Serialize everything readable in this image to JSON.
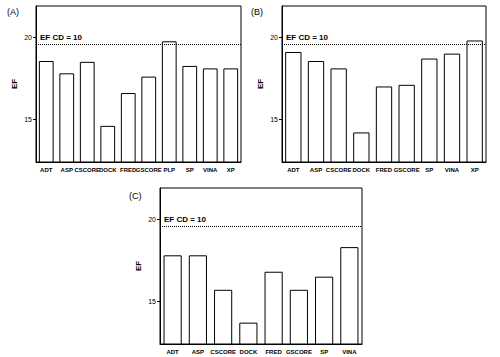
{
  "chart_data": [
    {
      "type": "bar",
      "title": "(A)",
      "ylabel": "EF",
      "categories": [
        "ADT",
        "ASP",
        "CSCORE",
        "DOCK",
        "FRED",
        "GSCORE",
        "PLP",
        "SP",
        "VINA",
        "XP"
      ],
      "values": [
        18.55,
        17.8,
        18.5,
        14.6,
        16.6,
        17.6,
        19.75,
        18.25,
        18.1,
        18.1
      ],
      "color": "#ffffff",
      "ylim": [
        12.4,
        21.9
      ],
      "yticks": [
        15,
        20
      ],
      "grid": false,
      "reference_line": {
        "value": 19.6,
        "label": "EF CD = 10"
      }
    },
    {
      "type": "bar",
      "title": "(B)",
      "ylabel": "EF",
      "categories": [
        "ADT",
        "ASP",
        "CSCORE",
        "DOCK",
        "FRED",
        "GSCORE",
        "SP",
        "VINA",
        "XP"
      ],
      "values": [
        19.1,
        18.55,
        18.1,
        14.2,
        17.0,
        17.1,
        18.7,
        19.0,
        19.8
      ],
      "color": "#ffffff",
      "ylim": [
        12.4,
        21.9
      ],
      "yticks": [
        15,
        20
      ],
      "grid": false,
      "reference_line": {
        "value": 19.6,
        "label": "EF CD = 10"
      }
    },
    {
      "type": "bar",
      "title": "(C)",
      "ylabel": "EF",
      "categories": [
        "ADT",
        "ASP",
        "CSCORE",
        "DOCK",
        "FRED",
        "GSCORE",
        "SP",
        "VINA"
      ],
      "values": [
        17.8,
        17.8,
        15.7,
        13.7,
        16.8,
        15.7,
        16.5,
        18.3
      ],
      "color": "#ffffff",
      "ylim": [
        12.4,
        21.9
      ],
      "yticks": [
        15,
        20
      ],
      "grid": false,
      "reference_line": {
        "value": 19.6,
        "label": "EF CD = 10"
      }
    }
  ]
}
